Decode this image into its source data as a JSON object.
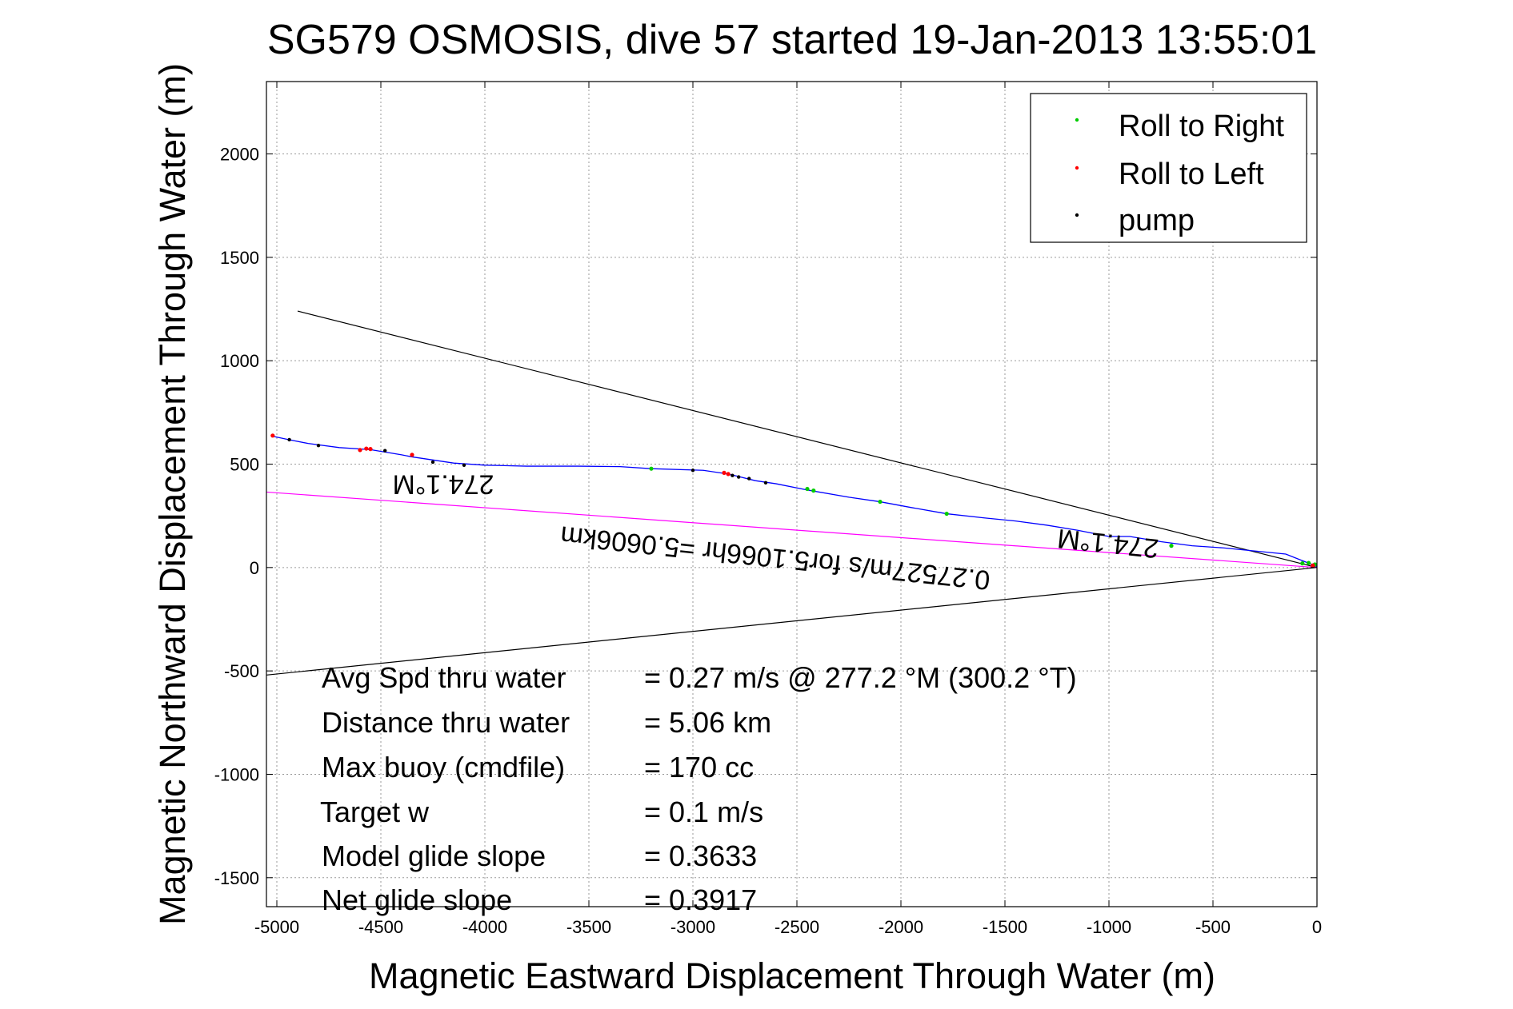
{
  "chart_data": {
    "type": "line",
    "title": "SG579 OSMOSIS, dive 57 started 19-Jan-2013 13:55:01",
    "xlabel": "Magnetic Eastward Displacement Through Water (m)",
    "ylabel": "Magnetic Northward Displacement Through Water (m)",
    "xlim": [
      -5050,
      0
    ],
    "ylim": [
      -1640,
      2350
    ],
    "xticks": [
      -5000,
      -4500,
      -4000,
      -3500,
      -3000,
      -2500,
      -2000,
      -1500,
      -1000,
      -500,
      0
    ],
    "xtick_labels": [
      "-5000",
      "-4500",
      "-4000",
      "-3500",
      "-3000",
      "-2500",
      "-2000",
      "-1500",
      "-1000",
      "-500",
      "0"
    ],
    "yticks": [
      -1500,
      -1000,
      -500,
      0,
      500,
      1000,
      1500,
      2000
    ],
    "ytick_labels": [
      "-1500",
      "-1000",
      "-500",
      "0",
      "500",
      "1000",
      "1500",
      "2000"
    ],
    "grid": true,
    "legend_position": "top-right",
    "legend": [
      {
        "label": "Roll to Right",
        "color": "#00cc00"
      },
      {
        "label": "Roll to Left",
        "color": "#ff0000"
      },
      {
        "label": "pump",
        "color": "#000000"
      }
    ],
    "track": {
      "color": "#0000ff",
      "x": [
        0,
        -150,
        -300,
        -450,
        -600,
        -750,
        -900,
        -1000,
        -1150,
        -1300,
        -1450,
        -1600,
        -1780,
        -1950,
        -2100,
        -2250,
        -2450,
        -2600,
        -2700,
        -2800,
        -2850,
        -2950,
        -3200,
        -3350,
        -3550,
        -3800,
        -4000,
        -4150,
        -4250,
        -4350,
        -4400,
        -4550,
        -4700,
        -4850,
        -4950,
        -5020
      ],
      "y": [
        5,
        65,
        80,
        95,
        105,
        125,
        150,
        150,
        180,
        205,
        225,
        240,
        260,
        290,
        318,
        340,
        375,
        405,
        420,
        445,
        455,
        470,
        478,
        488,
        490,
        490,
        495,
        505,
        520,
        535,
        545,
        570,
        580,
        600,
        620,
        635
      ]
    },
    "roll_right": {
      "x": [
        -10,
        -40,
        -70,
        -700,
        -1780,
        -2100,
        -2420,
        -2450,
        -3200
      ],
      "y": [
        15,
        22,
        20,
        105,
        260,
        318,
        372,
        380,
        478
      ]
    },
    "roll_left": {
      "x": [
        -20,
        -2850,
        -2830,
        -4350,
        -4550,
        -4570,
        -4600,
        -5020
      ],
      "y": [
        10,
        458,
        452,
        545,
        573,
        575,
        568,
        638
      ]
    },
    "pump": {
      "x": [
        -2730,
        -2780,
        -2810,
        -2650,
        -3000,
        -4100,
        -4250,
        -4480,
        -4800,
        -4940
      ],
      "y": [
        430,
        438,
        445,
        410,
        470,
        495,
        510,
        565,
        590,
        618
      ]
    },
    "reference_lines": [
      {
        "x": [
          0,
          -4900
        ],
        "y": [
          0,
          1240
        ],
        "color": "#000000"
      },
      {
        "x": [
          0,
          -5050
        ],
        "y": [
          0,
          -520
        ],
        "color": "#000000"
      },
      {
        "x": [
          0,
          -5050
        ],
        "y": [
          0,
          365
        ],
        "color": "#ff00ff"
      }
    ],
    "annotations": [
      {
        "text": "274.1°M",
        "x": -4200,
        "y": 445,
        "rotation": 180
      },
      {
        "text": "274.1°M",
        "x": -1000,
        "y": 160,
        "rotation": 186
      },
      {
        "text": "0.27527m/s for5.1066hr =5.0606km",
        "x": -2600,
        "y": 90,
        "rotation": 186
      }
    ],
    "stats": [
      {
        "label": "Avg Spd thru water",
        "value": "=  0.27 m/s @ 277.2 °M (300.2 °T)"
      },
      {
        "label": "Distance thru water",
        "value": "=  5.06 km"
      },
      {
        "label": "Max buoy (cmdfile)",
        "value": "= 170 cc"
      },
      {
        "label": "Target w",
        "value": "= 0.1 m/s"
      },
      {
        "label": "Model glide slope",
        "value": "= 0.3633"
      },
      {
        "label": "Net glide slope",
        "value": "= 0.3917"
      }
    ]
  }
}
